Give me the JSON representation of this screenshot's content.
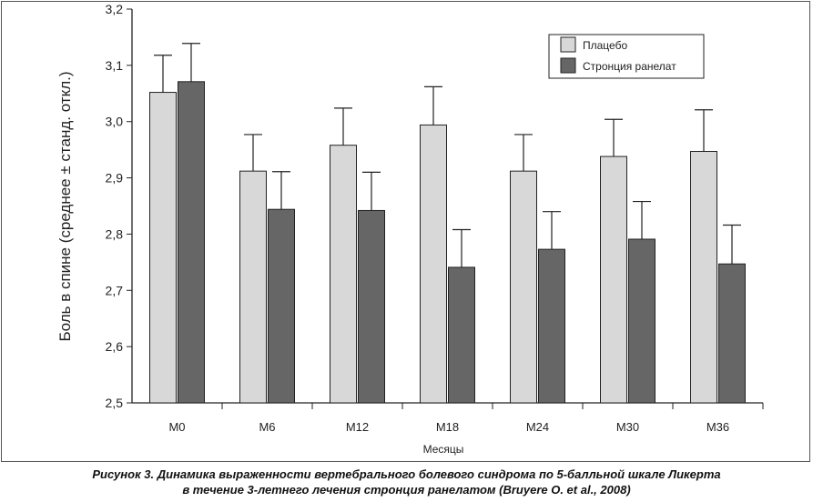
{
  "chart_data": {
    "type": "bar",
    "categories": [
      "M0",
      "M6",
      "M12",
      "M18",
      "M24",
      "M30",
      "M36"
    ],
    "series": [
      {
        "name": "Плацебо",
        "color": "#d8d8d8",
        "values": [
          3.052,
          2.912,
          2.958,
          2.994,
          2.912,
          2.938,
          2.947
        ],
        "errors": [
          0.066,
          0.065,
          0.066,
          0.068,
          0.065,
          0.066,
          0.074
        ]
      },
      {
        "name": "Стронция ранелат",
        "color": "#666666",
        "values": [
          3.071,
          2.844,
          2.842,
          2.741,
          2.773,
          2.791,
          2.747
        ],
        "errors": [
          0.068,
          0.067,
          0.068,
          0.067,
          0.067,
          0.067,
          0.069
        ]
      }
    ],
    "ylim": [
      2.5,
      3.2
    ],
    "yticks": [
      "2,5",
      "2,6",
      "2,7",
      "2,8",
      "2,9",
      "3,0",
      "3,1",
      "3,2"
    ],
    "ylabel": "Боль в спине (среднее ± станд. откл.)",
    "xlabel": "Месяцы",
    "legend_position": "top-right",
    "grid": false
  },
  "caption": {
    "line1": "Рисунок 3. Динамика выраженности вертебрального болевого синдрома по 5-балльной шкале Ликерта",
    "line2": "в течение 3-летнего лечения стронция ранелатом (Bruyere O. et al., 2008)"
  }
}
